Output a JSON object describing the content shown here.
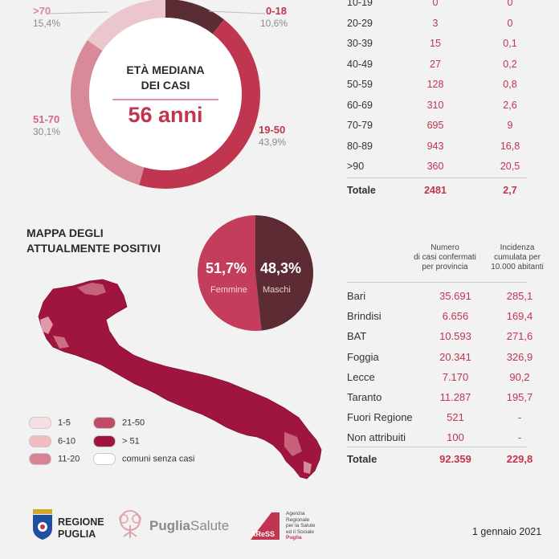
{
  "colors": {
    "accent": "#c0354f",
    "dark": "#5a2c34",
    "male": "#5c2b33",
    "female": "#c43d5a",
    "map": "#a0153e"
  },
  "donut": {
    "center_title_1": "ETÀ MEDIANA",
    "center_title_2": "DEI CASI",
    "center_value": "56 anni"
  },
  "chart_data": [
    {
      "type": "pie",
      "title": "ETÀ MEDIANA DEI CASI",
      "categories": [
        ">70",
        "0-18",
        "19-50",
        "51-70"
      ],
      "values": [
        15.4,
        10.6,
        43.9,
        30.1
      ],
      "labels": [
        "15,4%",
        "10,6%",
        "43,9%",
        "30,1%"
      ],
      "colors": [
        "#ecc6cd",
        "#5a2c34",
        "#c0354f",
        "#d88a9a"
      ]
    },
    {
      "type": "pie",
      "categories": [
        "Femmine",
        "Maschi"
      ],
      "values": [
        51.7,
        48.3
      ],
      "labels": [
        "51,7%",
        "48,3%"
      ],
      "colors": [
        "#c43d5a",
        "#5c2b33"
      ]
    }
  ],
  "age_table": {
    "rows": [
      {
        "age": "10-19",
        "cases": "0",
        "rate": "0"
      },
      {
        "age": "20-29",
        "cases": "3",
        "rate": "0"
      },
      {
        "age": "30-39",
        "cases": "15",
        "rate": "0,1"
      },
      {
        "age": "40-49",
        "cases": "27",
        "rate": "0,2"
      },
      {
        "age": "50-59",
        "cases": "128",
        "rate": "0,8"
      },
      {
        "age": "60-69",
        "cases": "310",
        "rate": "2,6"
      },
      {
        "age": "70-79",
        "cases": "695",
        "rate": "9"
      },
      {
        "age": "80-89",
        "cases": "943",
        "rate": "16,8"
      },
      {
        "age": ">90",
        "cases": "360",
        "rate": "20,5"
      }
    ],
    "total": {
      "age": "Totale",
      "cases": "2481",
      "rate": "2,7"
    }
  },
  "map_section": {
    "title_1": "MAPPA DEGLI",
    "title_2": "ATTUALMENTE POSITIVI"
  },
  "gender": {
    "female_pct": "51,7%",
    "female_label": "Femmine",
    "male_pct": "48,3%",
    "male_label": "Maschi"
  },
  "legend": [
    {
      "label": "1-5",
      "color": "#f6dfe0"
    },
    {
      "label": "6-10",
      "color": "#f0bcc2"
    },
    {
      "label": "11-20",
      "color": "#d98296"
    },
    {
      "label": "21-50",
      "color": "#c14a67"
    },
    {
      "label": "> 51",
      "color": "#a0153e"
    },
    {
      "label": "comuni senza casi",
      "color": "#ffffff"
    }
  ],
  "province_table": {
    "header_cases": [
      "Numero",
      "di casi confermati",
      "per provincia"
    ],
    "header_incidence": [
      "Incidenza",
      "cumulata per",
      "10.000 abitanti"
    ],
    "rows": [
      {
        "name": "Bari",
        "cases": "35.691",
        "incidence": "285,1"
      },
      {
        "name": "Brindisi",
        "cases": "6.656",
        "incidence": "169,4"
      },
      {
        "name": "BAT",
        "cases": "10.593",
        "incidence": "271,6"
      },
      {
        "name": "Foggia",
        "cases": "20.341",
        "incidence": "326,9"
      },
      {
        "name": "Lecce",
        "cases": "7.170",
        "incidence": "90,2"
      },
      {
        "name": "Taranto",
        "cases": "11.287",
        "incidence": "195,7"
      },
      {
        "name": "Fuori Regione",
        "cases": "521",
        "incidence": "-"
      },
      {
        "name": "Non attribuiti",
        "cases": "100",
        "incidence": "-"
      }
    ],
    "total": {
      "name": "Totale",
      "cases": "92.359",
      "incidence": "229,8"
    }
  },
  "footer": {
    "logo1_line1": "REGIONE",
    "logo1_line2": "PUGLIA",
    "logo2_a": "Puglia",
    "logo2_b": "Salute",
    "logo3_badge": "AReSS",
    "logo3_text": [
      "Agenzia",
      "Regionale",
      "per la Salute",
      "ed il Sociale",
      "Puglia"
    ],
    "date": "1 gennaio 2021"
  }
}
